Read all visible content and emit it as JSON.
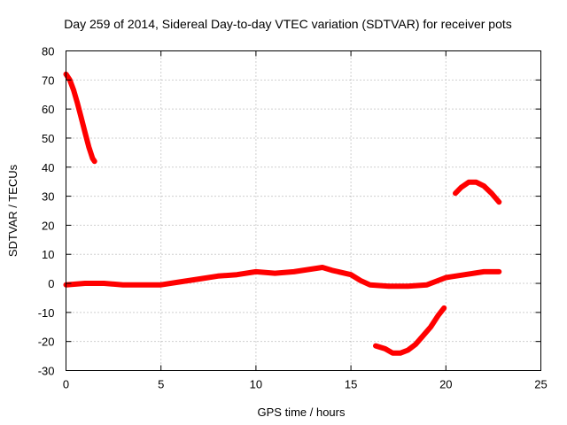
{
  "chart_data": {
    "type": "line",
    "title": "Day 259 of 2014, Sidereal Day-to-day VTEC variation (SDTVAR) for receiver pots",
    "xlabel": "GPS time / hours",
    "ylabel": "SDTVAR / TECUs",
    "xlim": [
      0,
      25
    ],
    "ylim": [
      -30,
      80
    ],
    "xticks": [
      0,
      5,
      10,
      15,
      20,
      25
    ],
    "yticks": [
      -30,
      -20,
      -10,
      0,
      10,
      20,
      30,
      40,
      50,
      60,
      70,
      80
    ],
    "grid": true,
    "color": "#ff0000",
    "series": [
      {
        "name": "segment-1",
        "x": [
          0.0,
          0.2,
          0.4,
          0.6,
          0.8,
          1.0,
          1.2,
          1.4,
          1.5
        ],
        "y": [
          72,
          70,
          66.5,
          62,
          57,
          52,
          47,
          43,
          42
        ]
      },
      {
        "name": "segment-2",
        "x": [
          0,
          1,
          2,
          3,
          4,
          5,
          6,
          7,
          8,
          9,
          10,
          11,
          12,
          13,
          13.5,
          14,
          15,
          15.5,
          16,
          17,
          18,
          19,
          20,
          21,
          22,
          22.8
        ],
        "y": [
          -0.5,
          0,
          0,
          -0.5,
          -0.5,
          -0.5,
          0.5,
          1.5,
          2.5,
          3,
          4,
          3.5,
          4,
          5,
          5.5,
          4.5,
          3,
          1,
          -0.5,
          -1,
          -1,
          -0.5,
          2,
          3,
          4,
          4
        ]
      },
      {
        "name": "segment-3",
        "x": [
          16.3,
          16.8,
          17.2,
          17.6,
          18.0,
          18.4,
          18.8,
          19.2,
          19.6,
          19.9
        ],
        "y": [
          -21.5,
          -22.5,
          -24,
          -24,
          -23,
          -21,
          -18,
          -15,
          -11,
          -8.5
        ]
      },
      {
        "name": "segment-4",
        "x": [
          20.5,
          20.8,
          21.2,
          21.6,
          22.0,
          22.4,
          22.8
        ],
        "y": [
          31,
          33,
          34.8,
          34.8,
          33.5,
          31,
          28
        ]
      }
    ]
  }
}
